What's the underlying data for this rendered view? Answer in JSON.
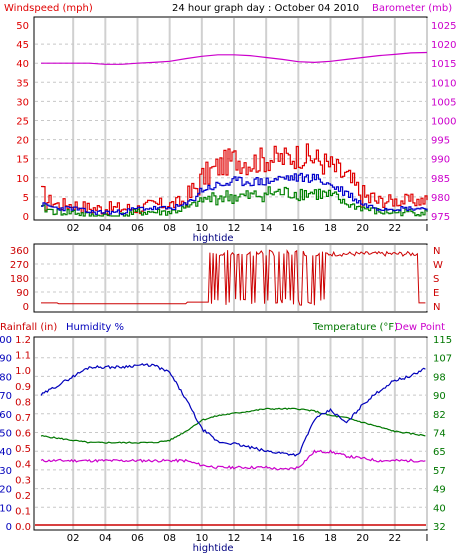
{
  "header": {
    "title": "24 hour graph day : October 04 2010",
    "windspeed_label": "Windspeed (mph)",
    "barometer_label": "Barometer (mb)",
    "rainfall_label": "Rainfall (in)",
    "humidity_label": "Humidity %",
    "temperature_label": "Temperature (°F)",
    "dewpoint_label": "Dew Point"
  },
  "colors": {
    "windspeed": "#e00000",
    "windgust": "#e00000",
    "windavg": "#0000cc",
    "windmin": "#008000",
    "barometer": "#cc00cc",
    "direction": "#cc0000",
    "humidity": "#0000bb",
    "temperature": "#007700",
    "dewpoint": "#cc00cc",
    "rainfall": "#cc0000",
    "grid_v": "#d0d0d0",
    "grid_h": "#c8c8c8"
  },
  "x_axis": {
    "tick_labels": [
      "02",
      "04",
      "06",
      "08",
      "10",
      "12",
      "14",
      "16",
      "18",
      "20",
      "22",
      "I"
    ],
    "caption": "hightide"
  },
  "chart_data": [
    {
      "type": "line",
      "name": "wind-barometer",
      "x_label": "hightide",
      "ylabel_left": "Windspeed (mph)",
      "ylabel_right": "Barometer (mb)",
      "ylim_left": [
        0,
        50
      ],
      "ylim_right": [
        975,
        1025
      ],
      "left_ticks": [
        "0",
        "5",
        "10",
        "15",
        "20",
        "25",
        "30",
        "35",
        "40",
        "45",
        "50"
      ],
      "right_ticks": [
        "975",
        "980",
        "985",
        "990",
        "995",
        "1000",
        "1005",
        "1010",
        "1015",
        "1020",
        "1025"
      ],
      "hours": [
        0,
        1,
        2,
        3,
        4,
        5,
        6,
        7,
        8,
        9,
        10,
        11,
        12,
        13,
        14,
        15,
        16,
        17,
        18,
        19,
        20,
        21,
        22,
        23,
        24
      ],
      "series": [
        {
          "name": "wind gust",
          "values": [
            5,
            3,
            3,
            2,
            2,
            2,
            2,
            3,
            3,
            4,
            10,
            13,
            15,
            14,
            15,
            15,
            16,
            15,
            13,
            10,
            5,
            4,
            4,
            4,
            4
          ]
        },
        {
          "name": "wind average",
          "values": [
            3,
            2,
            2,
            1,
            1,
            1,
            2,
            2,
            2,
            3,
            7,
            8,
            9,
            9,
            9,
            10,
            10,
            10,
            8,
            6,
            3,
            2,
            2,
            2,
            2
          ]
        },
        {
          "name": "wind minimum",
          "values": [
            2,
            1,
            1,
            0,
            0,
            0,
            1,
            1,
            1,
            2,
            4,
            5,
            5,
            5,
            6,
            6,
            6,
            6,
            5,
            3,
            2,
            1,
            1,
            1,
            1
          ]
        },
        {
          "name": "barometer",
          "values": [
            1015,
            1015,
            1015,
            1015,
            1014.7,
            1014.7,
            1015,
            1015.2,
            1015.5,
            1016.2,
            1016.8,
            1017.2,
            1017.2,
            1017,
            1016.5,
            1016,
            1015.4,
            1015.2,
            1015.5,
            1016,
            1016.5,
            1017,
            1017.3,
            1017.7,
            1017.8
          ]
        }
      ]
    },
    {
      "type": "line",
      "name": "wind-direction",
      "ylim_left": [
        0,
        360
      ],
      "left_ticks": [
        "0",
        "90",
        "180",
        "270",
        "360"
      ],
      "right_ticks": [
        "N",
        "E",
        "S",
        "W",
        "N"
      ],
      "hours": [
        0,
        2,
        4,
        6,
        8,
        9,
        10,
        10.5,
        17.5,
        18,
        20,
        22,
        23.5,
        24
      ],
      "values": [
        20,
        15,
        15,
        15,
        15,
        18,
        30,
        340,
        340,
        330,
        340,
        345,
        30,
        20
      ]
    },
    {
      "type": "line",
      "name": "humidity-temperature",
      "ylabel_left": "Rainfall (in) / Humidity %",
      "ylabel_right": "Temperature (°F) / Dew Point",
      "humidity_ticks": [
        "0",
        "10",
        "20",
        "30",
        "40",
        "50",
        "60",
        "70",
        "80",
        "90",
        "100"
      ],
      "rainfall_ticks": [
        "0.0",
        "0.1",
        "0.2",
        "0.3",
        "0.4",
        "0.5",
        "0.6",
        "0.7",
        "0.8",
        "0.9",
        "1.0",
        "1.1",
        "1.2"
      ],
      "temperature_ticks": [
        "32",
        "40",
        "49",
        "57",
        "65",
        "74",
        "82",
        "90",
        "98",
        "107",
        "115"
      ],
      "ylim_humidity": [
        0,
        100
      ],
      "ylim_temperature": [
        32,
        115
      ],
      "hours": [
        0,
        1,
        2,
        3,
        4,
        5,
        6,
        7,
        8,
        9,
        10,
        11,
        12,
        13,
        14,
        15,
        16,
        17,
        18,
        19,
        20,
        21,
        22,
        23,
        24
      ],
      "series": [
        {
          "name": "humidity",
          "values": [
            70,
            75,
            80,
            85,
            85,
            85,
            86,
            86,
            82,
            68,
            52,
            45,
            44,
            42,
            40,
            39,
            38,
            57,
            62,
            55,
            65,
            72,
            78,
            80,
            85
          ]
        },
        {
          "name": "temperature",
          "values": [
            72,
            71,
            70,
            69,
            69,
            69,
            69,
            69,
            70,
            74,
            79,
            81,
            82,
            83,
            84,
            84,
            84,
            83,
            81,
            80,
            78,
            76,
            74,
            73,
            72
          ]
        },
        {
          "name": "dew point",
          "values": [
            61,
            61,
            61,
            61,
            61,
            61,
            61,
            61,
            61,
            61,
            59,
            58,
            58,
            58,
            58,
            57,
            58,
            65,
            65,
            63,
            62,
            61,
            61,
            61,
            61
          ]
        },
        {
          "name": "rainfall",
          "values": [
            0,
            0,
            0,
            0,
            0,
            0,
            0,
            0,
            0,
            0,
            0,
            0,
            0,
            0,
            0,
            0,
            0,
            0,
            0,
            0,
            0,
            0,
            0,
            0,
            0
          ]
        }
      ]
    }
  ]
}
